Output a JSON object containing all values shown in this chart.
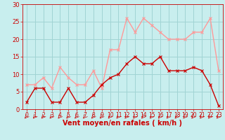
{
  "x": [
    0,
    1,
    2,
    3,
    4,
    5,
    6,
    7,
    8,
    9,
    10,
    11,
    12,
    13,
    14,
    15,
    16,
    17,
    18,
    19,
    20,
    21,
    22,
    23
  ],
  "wind_avg": [
    2,
    6,
    6,
    2,
    2,
    6,
    2,
    2,
    4,
    7,
    9,
    10,
    13,
    15,
    13,
    13,
    15,
    11,
    11,
    11,
    12,
    11,
    7,
    1
  ],
  "wind_gust": [
    7,
    7,
    9,
    6,
    12,
    9,
    7,
    7,
    11,
    6,
    17,
    17,
    26,
    22,
    26,
    24,
    22,
    20,
    20,
    20,
    22,
    22,
    26,
    11
  ],
  "ylim": [
    0,
    30
  ],
  "xlim": [
    -0.5,
    23.5
  ],
  "yticks": [
    0,
    5,
    10,
    15,
    20,
    25,
    30
  ],
  "xticks": [
    0,
    1,
    2,
    3,
    4,
    5,
    6,
    7,
    8,
    9,
    10,
    11,
    12,
    13,
    14,
    15,
    16,
    17,
    18,
    19,
    20,
    21,
    22,
    23
  ],
  "xlabel": "Vent moyen/en rafales ( km/h )",
  "bg_color": "#c8eeee",
  "grid_color": "#a0d4d4",
  "line_avg_color": "#cc0000",
  "line_gust_color": "#ff9999",
  "marker_size": 2.5,
  "line_width": 1.0,
  "xlabel_fontsize": 7,
  "tick_fontsize": 5.5,
  "ytick_fontsize": 6
}
